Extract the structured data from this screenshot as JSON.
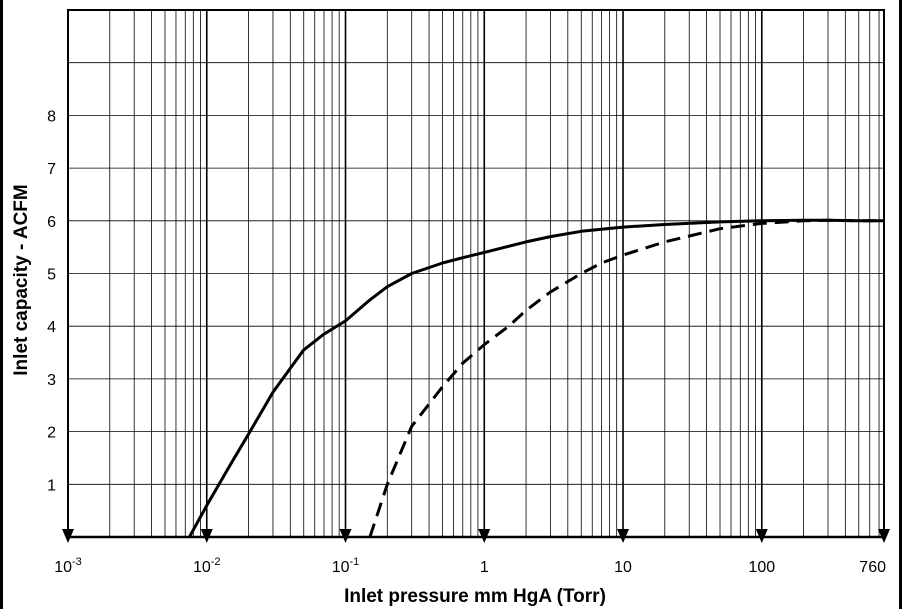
{
  "chart_data": {
    "type": "line",
    "xlabel": "Inlet pressure mm HgA (Torr)",
    "ylabel": "Inlet capacity - ACFM",
    "x_scale": "log",
    "xlim": [
      0.001,
      760
    ],
    "ylim": [
      0,
      10
    ],
    "grid": true,
    "x_ticks": [
      {
        "value": 0.001,
        "base": "10",
        "exp": "-3"
      },
      {
        "value": 0.01,
        "base": "10",
        "exp": "-2"
      },
      {
        "value": 0.1,
        "base": "10",
        "exp": "-1"
      },
      {
        "value": 1,
        "base": "1",
        "exp": ""
      },
      {
        "value": 10,
        "base": "10",
        "exp": ""
      },
      {
        "value": 100,
        "base": "100",
        "exp": ""
      },
      {
        "value": 760,
        "base": "760",
        "exp": ""
      }
    ],
    "y_ticks": [
      {
        "value": 1,
        "label": "1"
      },
      {
        "value": 2,
        "label": "2"
      },
      {
        "value": 3,
        "label": "3"
      },
      {
        "value": 4,
        "label": "4"
      },
      {
        "value": 5,
        "label": "5"
      },
      {
        "value": 6,
        "label": "6"
      },
      {
        "value": 7,
        "label": "7"
      },
      {
        "value": 8,
        "label": "8"
      }
    ],
    "series": [
      {
        "style": "solid",
        "x": [
          0.0075,
          0.01,
          0.015,
          0.02,
          0.03,
          0.05,
          0.07,
          0.1,
          0.15,
          0.2,
          0.3,
          0.5,
          0.7,
          1,
          2,
          3,
          5,
          10,
          20,
          50,
          100,
          200,
          300,
          500,
          760
        ],
        "y": [
          0,
          0.6,
          1.4,
          1.95,
          2.75,
          3.55,
          3.85,
          4.1,
          4.5,
          4.75,
          5.0,
          5.2,
          5.3,
          5.4,
          5.6,
          5.7,
          5.8,
          5.88,
          5.93,
          5.98,
          6.0,
          6.01,
          6.01,
          6.0,
          6.0
        ]
      },
      {
        "style": "dashed",
        "x": [
          0.15,
          0.2,
          0.3,
          0.5,
          0.7,
          1,
          1.5,
          2,
          3,
          5,
          7,
          10,
          20,
          50,
          100,
          200,
          300,
          500,
          760
        ],
        "y": [
          0,
          1.0,
          2.1,
          2.85,
          3.3,
          3.65,
          4.0,
          4.3,
          4.65,
          5.0,
          5.2,
          5.35,
          5.6,
          5.85,
          5.95,
          6.0,
          6.01,
          6.0,
          6.0
        ]
      }
    ]
  }
}
